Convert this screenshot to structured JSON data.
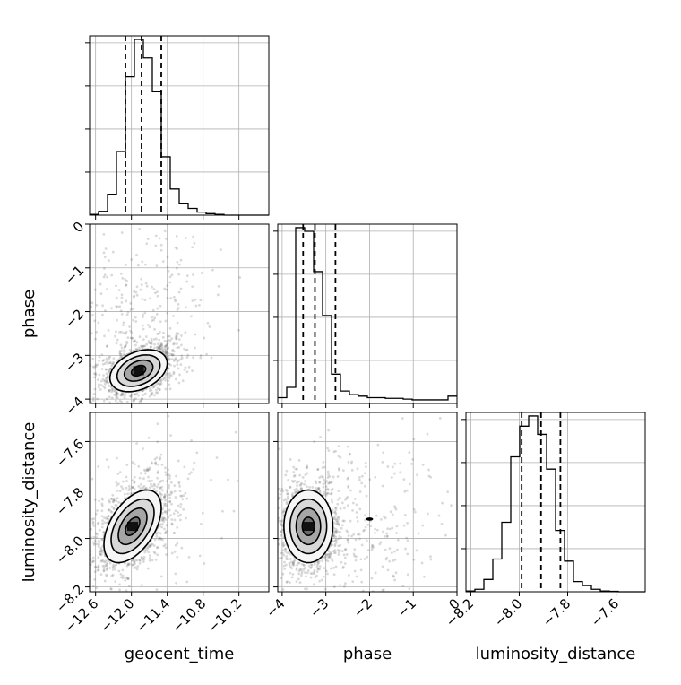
{
  "chart_data": {
    "type": "corner",
    "parameters": [
      "geocent_time",
      "phase",
      "luminosity_distance"
    ],
    "grid": true,
    "quantile_lines": "dashed",
    "axes": {
      "geocent_time": {
        "range": [
          -12.7,
          -9.7
        ],
        "ticks": [
          -12.6,
          -12.0,
          -11.4,
          -10.8,
          -10.2
        ],
        "tick_labels": [
          "−12.6",
          "−12.0",
          "−11.4",
          "−10.8",
          "−10.2"
        ],
        "quantiles": [
          -12.1,
          -11.83,
          -11.5
        ]
      },
      "phase": {
        "range": [
          -4.1,
          0.0
        ],
        "ticks": [
          -4,
          -3,
          -2,
          -1,
          0
        ],
        "tick_labels": [
          "−4",
          "−3",
          "−2",
          "−1",
          "0"
        ],
        "quantiles": [
          -3.52,
          -3.25,
          -2.78
        ]
      },
      "luminosity_distance": {
        "range": [
          -8.22,
          -7.48
        ],
        "ticks": [
          -8.2,
          -8.0,
          -7.8,
          -7.6
        ],
        "tick_labels": [
          "−8.2",
          "−8.0",
          "−7.8",
          "−7.6"
        ],
        "quantiles": [
          -7.99,
          -7.91,
          -7.83
        ]
      }
    },
    "histograms": [
      {
        "parameter": "geocent_time",
        "bin_edges": [
          -12.7,
          -12.55,
          -12.4,
          -12.25,
          -12.1,
          -11.95,
          -11.8,
          -11.65,
          -11.5,
          -11.35,
          -11.2,
          -11.05,
          -10.9,
          -10.75,
          -10.6,
          -10.45,
          -10.3,
          -10.15,
          -10.0,
          -9.85,
          -9.7
        ],
        "counts": [
          1,
          5,
          28,
          85,
          185,
          235,
          210,
          165,
          78,
          35,
          16,
          9,
          4,
          2,
          1,
          0,
          0,
          0,
          0,
          0
        ]
      },
      {
        "parameter": "phase",
        "bin_edges": [
          -4.1,
          -3.895,
          -3.69,
          -3.485,
          -3.28,
          -3.075,
          -2.87,
          -2.665,
          -2.46,
          -2.255,
          -2.05,
          -1.845,
          -1.64,
          -1.435,
          -1.23,
          -1.025,
          -0.82,
          -0.615,
          -0.41,
          -0.205,
          0.0
        ],
        "counts": [
          8,
          22,
          240,
          235,
          180,
          120,
          40,
          17,
          12,
          10,
          8,
          8,
          7,
          7,
          6,
          5,
          5,
          5,
          5,
          10
        ]
      },
      {
        "parameter": "luminosity_distance",
        "bin_edges": [
          -8.22,
          -8.183,
          -8.146,
          -8.109,
          -8.072,
          -8.035,
          -7.998,
          -7.961,
          -7.924,
          -7.887,
          -7.85,
          -7.813,
          -7.776,
          -7.739,
          -7.702,
          -7.665,
          -7.628,
          -7.591,
          -7.554,
          -7.517,
          -7.48
        ],
        "counts": [
          2,
          6,
          30,
          80,
          170,
          330,
          405,
          430,
          385,
          300,
          150,
          75,
          25,
          15,
          6,
          2,
          1,
          0,
          0,
          0
        ]
      }
    ],
    "contours_2d": [
      {
        "x": "geocent_time",
        "y": "phase",
        "peak": [
          -11.88,
          -3.35
        ],
        "spread": [
          0.24,
          0.24
        ],
        "correlation": 0.35,
        "levels_sigma": [
          0.5,
          1.0,
          1.5,
          2.0
        ]
      },
      {
        "x": "geocent_time",
        "y": "luminosity_distance",
        "peak": [
          -11.98,
          -7.95
        ],
        "spread": [
          0.24,
          0.075
        ],
        "correlation": 0.5,
        "levels_sigma": [
          0.5,
          1.0,
          1.5,
          2.0
        ]
      },
      {
        "x": "phase",
        "y": "luminosity_distance",
        "peak": [
          -3.4,
          -7.95
        ],
        "spread": [
          0.28,
          0.075
        ],
        "correlation": 0.0,
        "levels_sigma": [
          0.5,
          1.0,
          1.5,
          2.0
        ]
      }
    ]
  }
}
